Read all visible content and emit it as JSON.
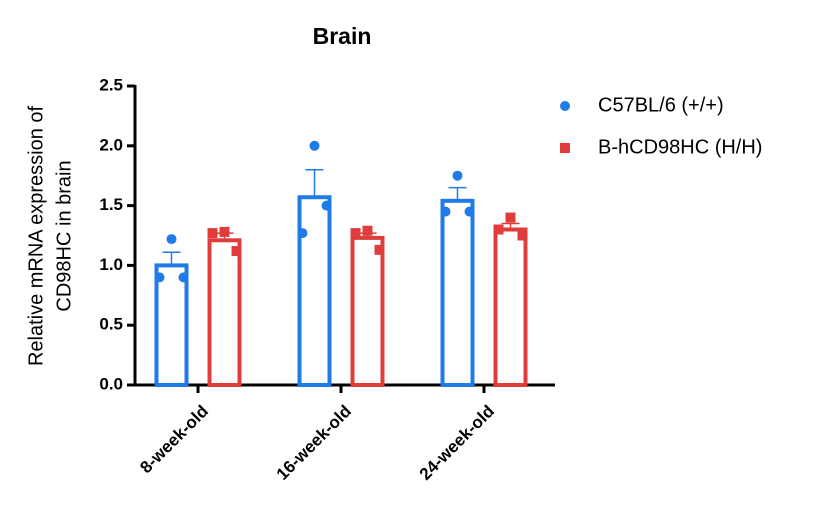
{
  "chart_data": {
    "type": "bar",
    "title": "Brain",
    "ylabel": [
      "Relative mRNA expression of",
      "CD98HC in brain"
    ],
    "categories": [
      "8-week-old",
      "16-week-old",
      "24-week-old"
    ],
    "ylim": [
      0,
      2.5
    ],
    "yticks": [
      {
        "value": 0,
        "label": "0.0"
      },
      0.5,
      {
        "value": 1,
        "label": "1.0"
      },
      1.5,
      {
        "value": 2,
        "label": "2.0"
      },
      2.5
    ],
    "legend": "right",
    "series": [
      {
        "name": "C57BL/6 (+/+)",
        "color": "#1f7be8",
        "marker": "circle",
        "values": [
          1.0,
          1.57,
          1.54
        ],
        "errors": [
          0.11,
          0.23,
          0.11
        ],
        "points": [
          [
            1.22,
            0.9,
            0.9
          ],
          [
            2.0,
            1.5,
            1.27
          ],
          [
            1.75,
            1.45,
            1.45
          ]
        ]
      },
      {
        "name": "B-hCD98HC (H/H)",
        "color": "#e03c3c",
        "marker": "square",
        "values": [
          1.21,
          1.23,
          1.3
        ],
        "errors": [
          0.06,
          0.04,
          0.05
        ],
        "points": [
          [
            1.28,
            1.12,
            1.27
          ],
          [
            1.29,
            1.13,
            1.27
          ],
          [
            1.4,
            1.25,
            1.3
          ]
        ]
      }
    ]
  }
}
